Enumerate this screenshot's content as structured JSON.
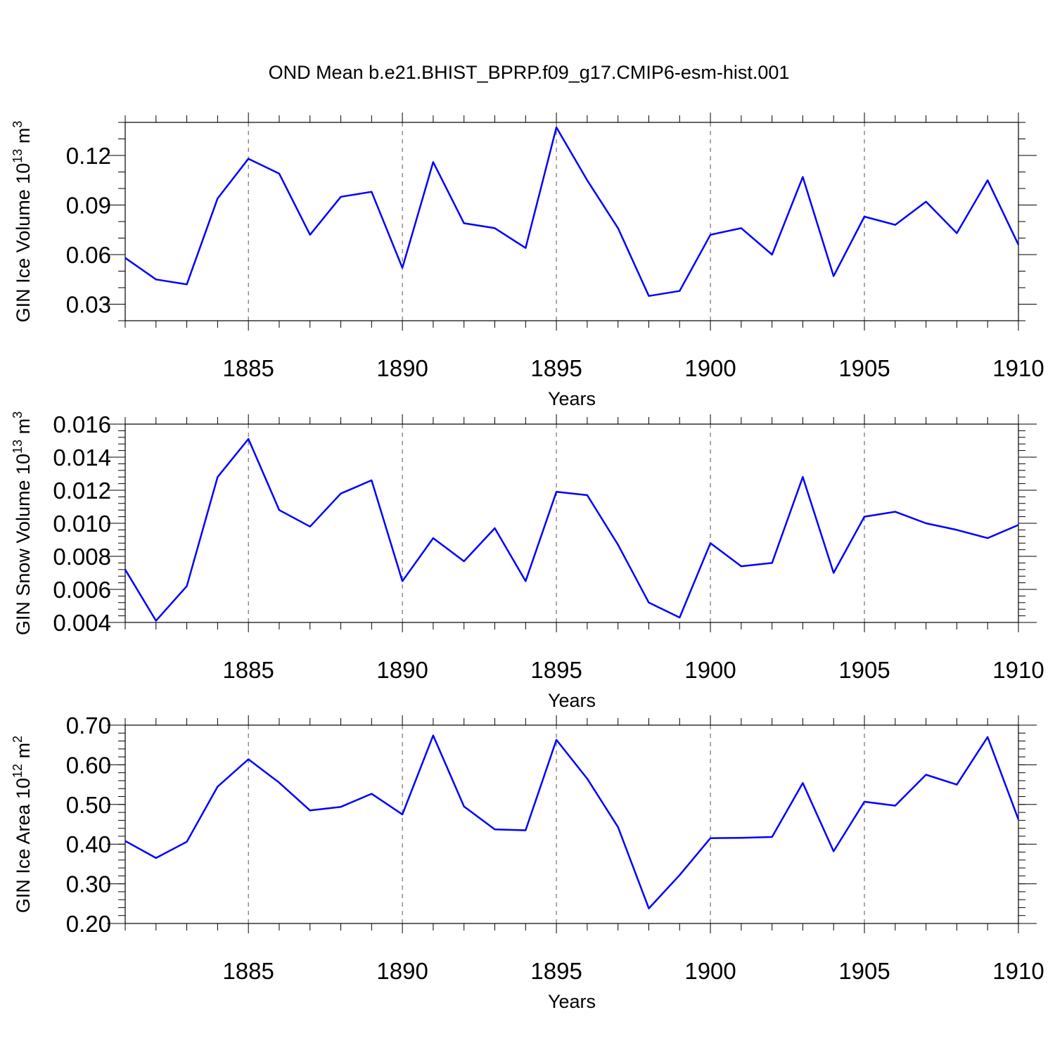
{
  "title": "OND Mean b.e21.BHIST_BPRP.f09_g17.CMIP6-esm-hist.001",
  "colors": {
    "line": "#0000ff",
    "axis": "#000000"
  },
  "chart_data": [
    {
      "type": "line",
      "name": "ice-volume",
      "ylabel": "GIN Ice Volume 10",
      "ylabel_exp": "13",
      "ylabel_unit": " m",
      "ylabel_unit_exp": "3",
      "xlabel": "Years",
      "xlim": [
        1881,
        1910
      ],
      "ylim": [
        0.02,
        0.14
      ],
      "yticks": [
        0.03,
        0.06,
        0.09,
        0.12
      ],
      "ytick_labels": [
        "0.03",
        "0.06",
        "0.09",
        "0.12"
      ],
      "yminor_step": 0.01,
      "xticks": [
        1885,
        1890,
        1895,
        1900,
        1905,
        1910
      ],
      "xtick_labels": [
        "1885",
        "1890",
        "1895",
        "1900",
        "1905",
        "1910"
      ],
      "x": [
        1881,
        1882,
        1883,
        1884,
        1885,
        1886,
        1887,
        1888,
        1889,
        1890,
        1891,
        1892,
        1893,
        1894,
        1895,
        1896,
        1897,
        1898,
        1899,
        1900,
        1901,
        1902,
        1903,
        1904,
        1905,
        1906,
        1907,
        1908,
        1909,
        1910
      ],
      "values": [
        0.058,
        0.045,
        0.042,
        0.094,
        0.118,
        0.109,
        0.072,
        0.095,
        0.098,
        0.052,
        0.116,
        0.079,
        0.076,
        0.064,
        0.137,
        0.105,
        0.076,
        0.035,
        0.038,
        0.072,
        0.076,
        0.06,
        0.107,
        0.047,
        0.083,
        0.078,
        0.092,
        0.073,
        0.105,
        0.066
      ]
    },
    {
      "type": "line",
      "name": "snow-volume",
      "ylabel": "GIN Snow Volume 10",
      "ylabel_exp": "13",
      "ylabel_unit": " m",
      "ylabel_unit_exp": "3",
      "xlabel": "Years",
      "xlim": [
        1881,
        1910
      ],
      "ylim": [
        0.004,
        0.016
      ],
      "yticks": [
        0.004,
        0.006,
        0.008,
        0.01,
        0.012,
        0.014,
        0.016
      ],
      "ytick_labels": [
        "0.004",
        "0.006",
        "0.008",
        "0.010",
        "0.012",
        "0.014",
        "0.016"
      ],
      "yminor_step": 0.0004,
      "xticks": [
        1885,
        1890,
        1895,
        1900,
        1905,
        1910
      ],
      "xtick_labels": [
        "1885",
        "1890",
        "1895",
        "1900",
        "1905",
        "1910"
      ],
      "x": [
        1881,
        1882,
        1883,
        1884,
        1885,
        1886,
        1887,
        1888,
        1889,
        1890,
        1891,
        1892,
        1893,
        1894,
        1895,
        1896,
        1897,
        1898,
        1899,
        1900,
        1901,
        1902,
        1903,
        1904,
        1905,
        1906,
        1907,
        1908,
        1909,
        1910
      ],
      "values": [
        0.0072,
        0.0041,
        0.0062,
        0.0128,
        0.0151,
        0.0108,
        0.0098,
        0.0118,
        0.0126,
        0.0065,
        0.0091,
        0.0077,
        0.0097,
        0.0065,
        0.0119,
        0.0117,
        0.0087,
        0.0052,
        0.0043,
        0.0088,
        0.0074,
        0.0076,
        0.0128,
        0.007,
        0.0104,
        0.0107,
        0.01,
        0.0096,
        0.0091,
        0.0099
      ]
    },
    {
      "type": "line",
      "name": "ice-area",
      "ylabel": "GIN Ice Area 10",
      "ylabel_exp": "12",
      "ylabel_unit": " m",
      "ylabel_unit_exp": "2",
      "xlabel": "Years",
      "xlim": [
        1881,
        1910
      ],
      "ylim": [
        0.2,
        0.7
      ],
      "yticks": [
        0.2,
        0.3,
        0.4,
        0.5,
        0.6,
        0.7
      ],
      "ytick_labels": [
        "0.20",
        "0.30",
        "0.40",
        "0.50",
        "0.60",
        "0.70"
      ],
      "yminor_step": 0.02,
      "xticks": [
        1885,
        1890,
        1895,
        1900,
        1905,
        1910
      ],
      "xtick_labels": [
        "1885",
        "1890",
        "1895",
        "1900",
        "1905",
        "1910"
      ],
      "x": [
        1881,
        1882,
        1883,
        1884,
        1885,
        1886,
        1887,
        1888,
        1889,
        1890,
        1891,
        1892,
        1893,
        1894,
        1895,
        1896,
        1897,
        1898,
        1899,
        1900,
        1901,
        1902,
        1903,
        1904,
        1905,
        1906,
        1907,
        1908,
        1909,
        1910
      ],
      "values": [
        0.408,
        0.365,
        0.406,
        0.545,
        0.614,
        0.555,
        0.485,
        0.494,
        0.527,
        0.475,
        0.674,
        0.495,
        0.437,
        0.435,
        0.663,
        0.565,
        0.443,
        0.238,
        0.322,
        0.415,
        0.416,
        0.418,
        0.554,
        0.382,
        0.507,
        0.497,
        0.575,
        0.55,
        0.67,
        0.462
      ]
    }
  ]
}
